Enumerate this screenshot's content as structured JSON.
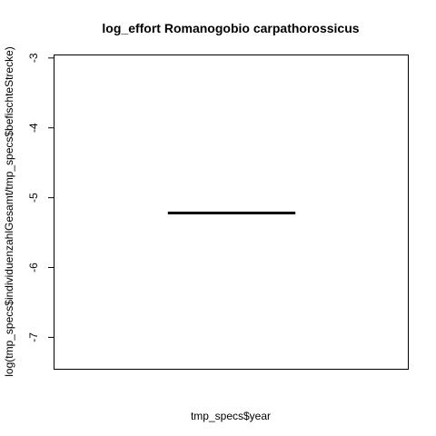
{
  "chart_data": {
    "type": "line",
    "title": "log_effort Romanogobio carpathorossicus",
    "xlabel": "tmp_specs$year",
    "ylabel": "log(tmp_specs$individuenzahlGesamt/tmp_specs$befischteStrecke)",
    "ylim": [
      -7.45,
      -2.95
    ],
    "yticks": [
      -3,
      -4,
      -5,
      -6,
      -7
    ],
    "y_tick_labels": [
      "-3",
      "-4",
      "-5",
      "-6",
      "-7"
    ],
    "series": [
      {
        "x": [
          0.32,
          0.68
        ],
        "y": [
          -5.22,
          -5.22
        ]
      }
    ],
    "xlim": [
      0,
      1
    ],
    "grid": false,
    "line_color": "#000000"
  }
}
